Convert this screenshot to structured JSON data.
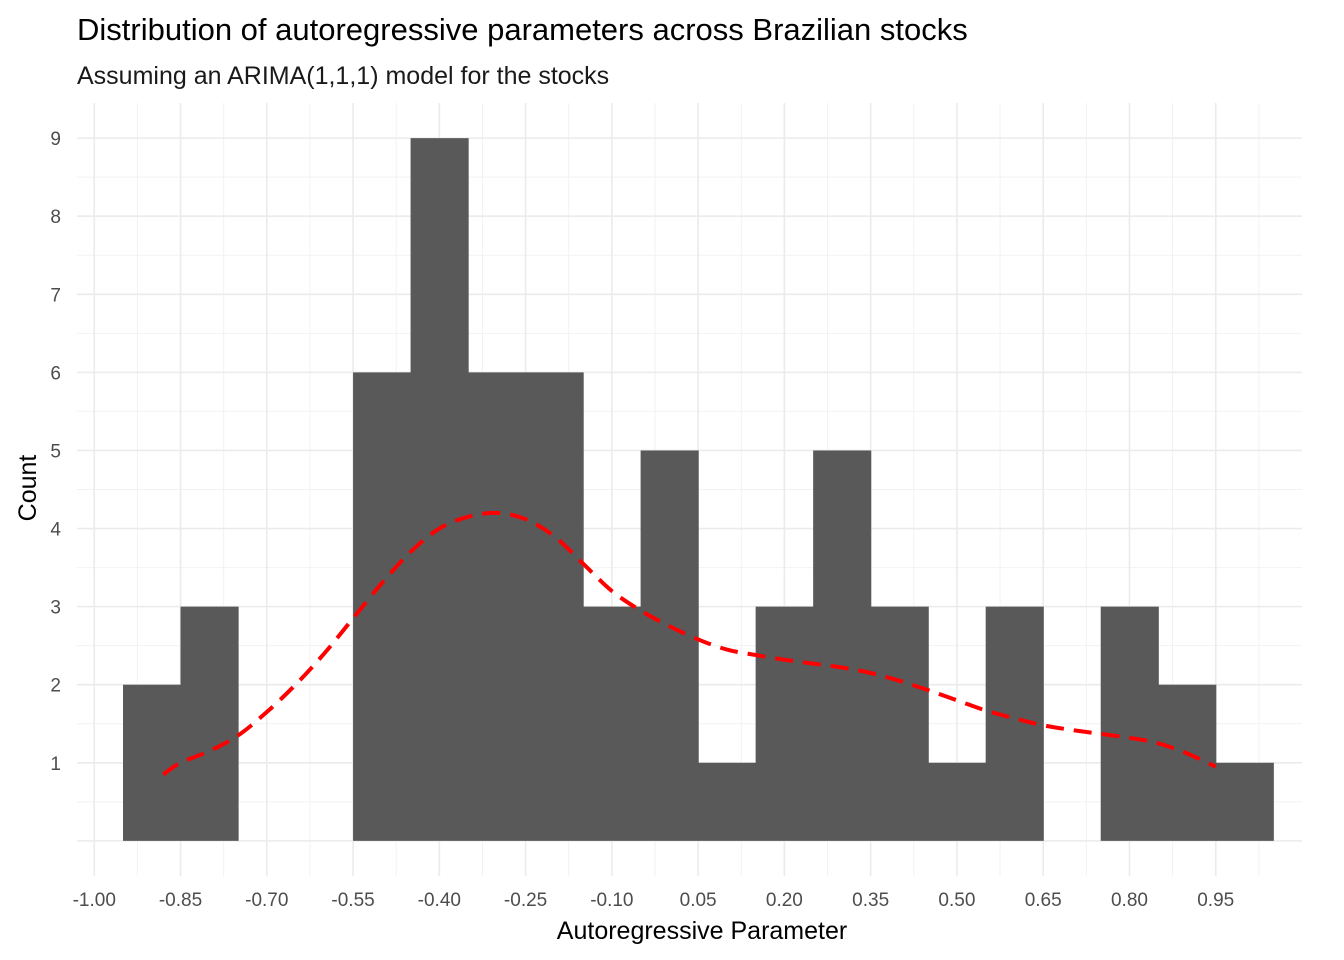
{
  "chart_data": {
    "type": "bar",
    "title": "Distribution of autoregressive parameters across Brazilian stocks",
    "subtitle": "Assuming an ARIMA(1,1,1) model for the stocks",
    "xlabel": "Autoregressive Parameter",
    "ylabel": "Count",
    "bin_width": 0.1,
    "bins": [
      {
        "x0": -0.95,
        "x1": -0.85,
        "count": 2
      },
      {
        "x0": -0.85,
        "x1": -0.75,
        "count": 3
      },
      {
        "x0": -0.75,
        "x1": -0.65,
        "count": 0
      },
      {
        "x0": -0.65,
        "x1": -0.55,
        "count": 0
      },
      {
        "x0": -0.55,
        "x1": -0.45,
        "count": 6
      },
      {
        "x0": -0.45,
        "x1": -0.35,
        "count": 9
      },
      {
        "x0": -0.35,
        "x1": -0.25,
        "count": 6
      },
      {
        "x0": -0.25,
        "x1": -0.15,
        "count": 6
      },
      {
        "x0": -0.15,
        "x1": -0.05,
        "count": 3
      },
      {
        "x0": -0.05,
        "x1": 0.05,
        "count": 5
      },
      {
        "x0": 0.05,
        "x1": 0.15,
        "count": 1
      },
      {
        "x0": 0.15,
        "x1": 0.25,
        "count": 3
      },
      {
        "x0": 0.25,
        "x1": 0.35,
        "count": 5
      },
      {
        "x0": 0.35,
        "x1": 0.45,
        "count": 3
      },
      {
        "x0": 0.45,
        "x1": 0.55,
        "count": 1
      },
      {
        "x0": 0.55,
        "x1": 0.65,
        "count": 3
      },
      {
        "x0": 0.65,
        "x1": 0.75,
        "count": 0
      },
      {
        "x0": 0.75,
        "x1": 0.85,
        "count": 3
      },
      {
        "x0": 0.85,
        "x1": 0.95,
        "count": 2
      },
      {
        "x0": 0.95,
        "x1": 1.05,
        "count": 1
      }
    ],
    "density_line": {
      "x": [
        -0.88,
        -0.85,
        -0.8,
        -0.75,
        -0.7,
        -0.65,
        -0.6,
        -0.55,
        -0.5,
        -0.45,
        -0.4,
        -0.35,
        -0.3,
        -0.25,
        -0.2,
        -0.15,
        -0.1,
        -0.05,
        0.0,
        0.05,
        0.1,
        0.15,
        0.2,
        0.25,
        0.3,
        0.35,
        0.4,
        0.45,
        0.5,
        0.55,
        0.6,
        0.65,
        0.7,
        0.75,
        0.8,
        0.85,
        0.9,
        0.95
      ],
      "y": [
        0.85,
        1.0,
        1.15,
        1.35,
        1.65,
        2.0,
        2.4,
        2.85,
        3.3,
        3.7,
        4.0,
        4.15,
        4.2,
        4.12,
        3.9,
        3.55,
        3.2,
        2.95,
        2.75,
        2.58,
        2.45,
        2.38,
        2.32,
        2.27,
        2.22,
        2.15,
        2.05,
        1.93,
        1.8,
        1.67,
        1.57,
        1.48,
        1.42,
        1.37,
        1.32,
        1.25,
        1.12,
        0.95
      ]
    },
    "xticks": [
      "-1.00",
      "-0.85",
      "-0.70",
      "-0.55",
      "-0.40",
      "-0.25",
      "-0.10",
      "0.05",
      "0.20",
      "0.35",
      "0.50",
      "0.65",
      "0.80",
      "0.95"
    ],
    "xtick_values": [
      -1.0,
      -0.85,
      -0.7,
      -0.55,
      -0.4,
      -0.25,
      -0.1,
      0.05,
      0.2,
      0.35,
      0.5,
      0.65,
      0.8,
      0.95
    ],
    "yticks": [
      "1",
      "2",
      "3",
      "4",
      "5",
      "6",
      "7",
      "8",
      "9"
    ],
    "ytick_values": [
      1,
      2,
      3,
      4,
      5,
      6,
      7,
      8,
      9
    ],
    "xlim": [
      -1.03,
      1.1
    ],
    "ylim": [
      -0.45,
      9.45
    ],
    "grid": true,
    "legend": "none",
    "colors": {
      "bar": "#595959",
      "density": "#ff0000",
      "background": "#ffffff"
    }
  }
}
